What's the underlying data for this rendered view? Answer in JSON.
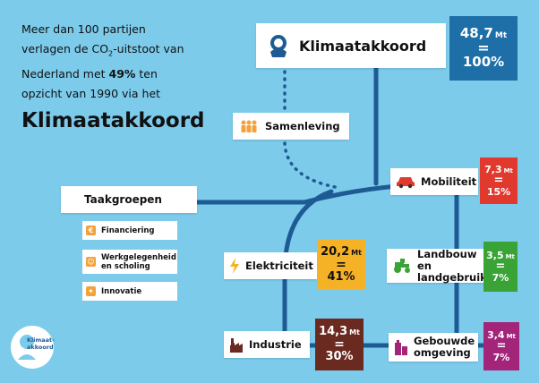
{
  "intro": {
    "line1": "Meer dan 100 partijen",
    "line2_pre": "verlagen de CO",
    "line2_sub": "2",
    "line2_post": "-uitstoot van",
    "line3_pre": "Nederland met ",
    "line3_bold": "49%",
    "line3_post": " ten",
    "line4": "opzicht van 1990 via het",
    "title": "Klimaatakkoord"
  },
  "main": {
    "label": "Klimaatakkoord",
    "value": "48,7",
    "unit": "Mt",
    "equals": "=",
    "percent": "100%",
    "color": "#1e6fa8"
  },
  "samenleving": {
    "label": "Samenleving"
  },
  "taakgroepen": {
    "label": "Taakgroepen",
    "items": [
      {
        "label": "Financiering"
      },
      {
        "label": "Werkgelegenheid",
        "label2": "en scholing"
      },
      {
        "label": "Innovatie"
      }
    ]
  },
  "sectors": {
    "mobiliteit": {
      "label": "Mobiliteit",
      "value": "7,3",
      "unit": "Mt",
      "equals": "=",
      "percent": "15%",
      "color": "#e2392f"
    },
    "landbouw": {
      "label": "Landbouw en",
      "label2": "landgebruik",
      "value": "3,5",
      "unit": "Mt",
      "equals": "=",
      "percent": "7%",
      "color": "#3aa335"
    },
    "gebouwde": {
      "label": "Gebouwde",
      "label2": "omgeving",
      "value": "3,4",
      "unit": "Mt",
      "equals": "=",
      "percent": "7%",
      "color": "#a3257a"
    },
    "elektriciteit": {
      "label": "Elektriciteit",
      "value": "20,2",
      "unit": "Mt",
      "equals": "=",
      "percent": "41%",
      "color": "#f6b227"
    },
    "industrie": {
      "label": "Industrie",
      "value": "14,3",
      "unit": "Mt",
      "equals": "=",
      "percent": "30%",
      "color": "#6b2a20"
    }
  },
  "logo": {
    "line1": "Klimaat-",
    "line2": "akkoord"
  }
}
